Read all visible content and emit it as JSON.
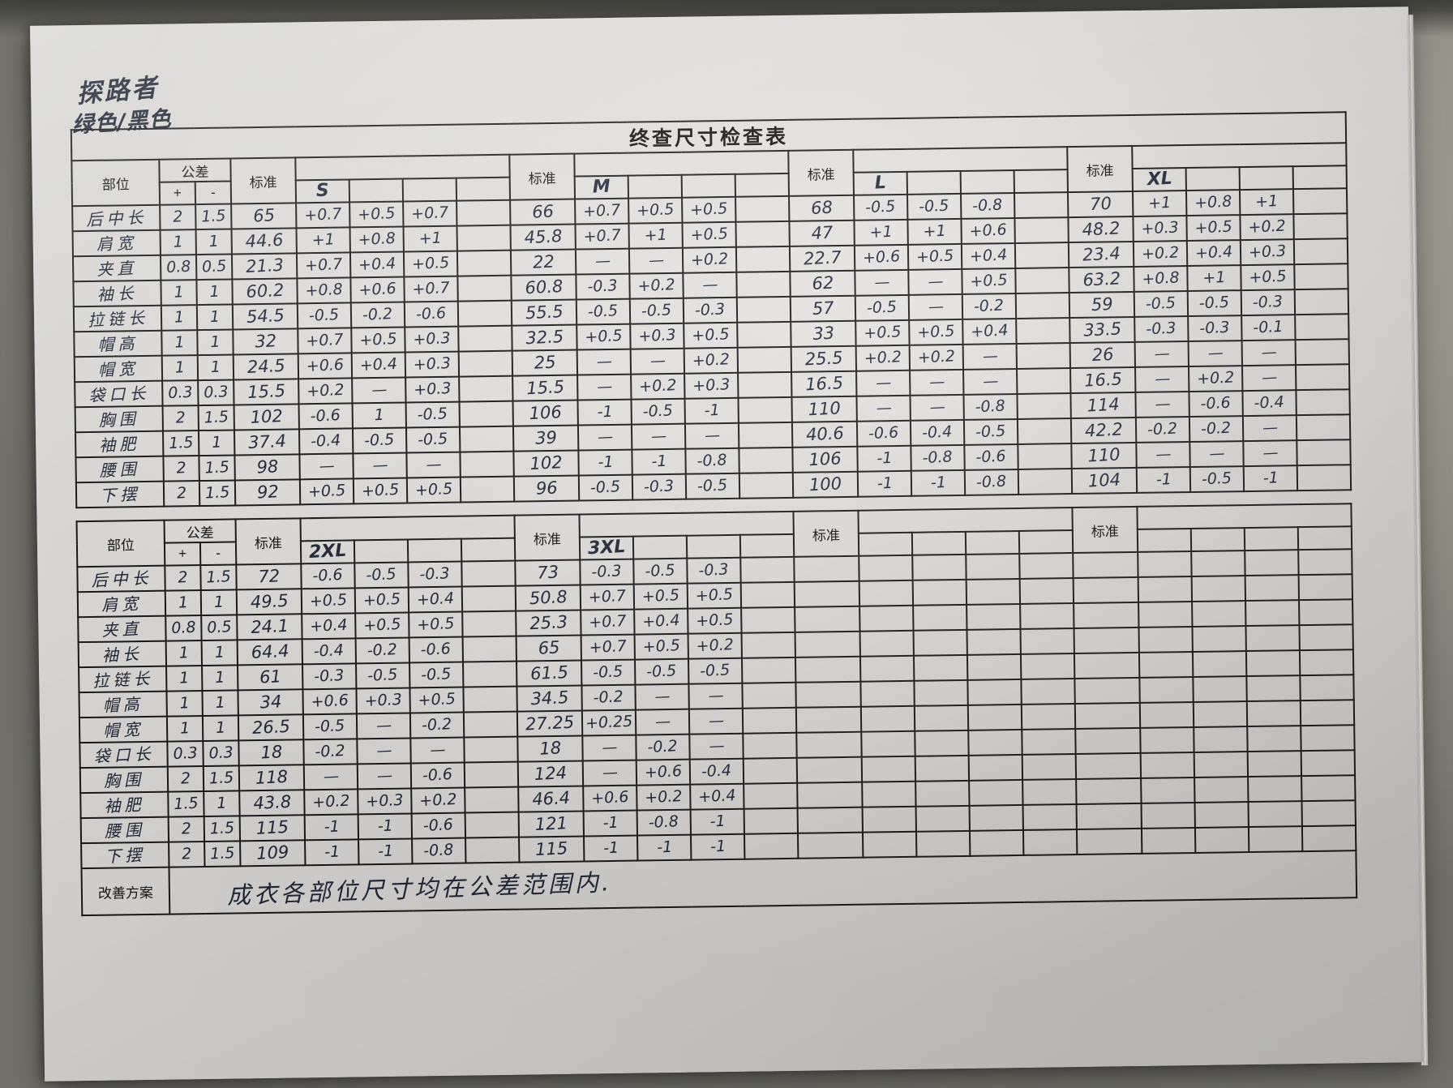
{
  "page": {
    "brand_note_line1": "探路者",
    "brand_note_line2": "绿色/黑色",
    "title": "终查尺寸检查表",
    "improvement_label": "改善方案",
    "improvement_text": "成衣各部位尺寸均在公差范围内."
  },
  "labels": {
    "part": "部位",
    "tolerance": "公差",
    "plus": "+",
    "minus": "-",
    "standard": "标准"
  },
  "parts": [
    {
      "name": "后中长",
      "plus": "2",
      "minus": "1.5"
    },
    {
      "name": "肩宽",
      "plus": "1",
      "minus": "1"
    },
    {
      "name": "夹直",
      "plus": "0.8",
      "minus": "0.5"
    },
    {
      "name": "袖长",
      "plus": "1",
      "minus": "1"
    },
    {
      "name": "拉链长",
      "plus": "1",
      "minus": "1"
    },
    {
      "name": "帽高",
      "plus": "1",
      "minus": "1"
    },
    {
      "name": "帽宽",
      "plus": "1",
      "minus": "1"
    },
    {
      "name": "袋口长",
      "plus": "0.3",
      "minus": "0.3"
    },
    {
      "name": "胸围",
      "plus": "2",
      "minus": "1.5"
    },
    {
      "name": "袖肥",
      "plus": "1.5",
      "minus": "1"
    },
    {
      "name": "腰围",
      "plus": "2",
      "minus": "1.5"
    },
    {
      "name": "下摆",
      "plus": "2",
      "minus": "1.5"
    }
  ],
  "tables": [
    {
      "blocks": [
        {
          "size": "S",
          "std": [
            "65",
            "44.6",
            "21.3",
            "60.2",
            "54.5",
            "32",
            "24.5",
            "15.5",
            "102",
            "37.4",
            "98",
            "92"
          ],
          "rows": [
            [
              "+0.7",
              "+0.5",
              "+0.7"
            ],
            [
              "+1",
              "+0.8",
              "+1"
            ],
            [
              "+0.7",
              "+0.4",
              "+0.5"
            ],
            [
              "+0.8",
              "+0.6",
              "+0.7"
            ],
            [
              "-0.5",
              "-0.2",
              "-0.6"
            ],
            [
              "+0.7",
              "+0.5",
              "+0.3"
            ],
            [
              "+0.6",
              "+0.4",
              "+0.3"
            ],
            [
              "+0.2",
              "—",
              "+0.3"
            ],
            [
              "-0.6",
              "1",
              "-0.5"
            ],
            [
              "-0.4",
              "-0.5",
              "-0.5"
            ],
            [
              "—",
              "—",
              "—"
            ],
            [
              "+0.5",
              "+0.5",
              "+0.5"
            ]
          ]
        },
        {
          "size": "M",
          "std": [
            "66",
            "45.8",
            "22",
            "60.8",
            "55.5",
            "32.5",
            "25",
            "15.5",
            "106",
            "39",
            "102",
            "96"
          ],
          "rows": [
            [
              "+0.7",
              "+0.5",
              "+0.5"
            ],
            [
              "+0.7",
              "+1",
              "+0.5"
            ],
            [
              "—",
              "—",
              "+0.2"
            ],
            [
              "-0.3",
              "+0.2",
              "—"
            ],
            [
              "-0.5",
              "-0.5",
              "-0.3"
            ],
            [
              "+0.5",
              "+0.3",
              "+0.5"
            ],
            [
              "—",
              "—",
              "+0.2"
            ],
            [
              "—",
              "+0.2",
              "+0.3"
            ],
            [
              "-1",
              "-0.5",
              "-1"
            ],
            [
              "—",
              "—",
              "—"
            ],
            [
              "-1",
              "-1",
              "-0.8"
            ],
            [
              "-0.5",
              "-0.3",
              "-0.5"
            ]
          ]
        },
        {
          "size": "L",
          "std": [
            "68",
            "47",
            "22.7",
            "62",
            "57",
            "33",
            "25.5",
            "16.5",
            "110",
            "40.6",
            "106",
            "100"
          ],
          "rows": [
            [
              "-0.5",
              "-0.5",
              "-0.8"
            ],
            [
              "+1",
              "+1",
              "+0.6"
            ],
            [
              "+0.6",
              "+0.5",
              "+0.4"
            ],
            [
              "—",
              "—",
              "+0.5"
            ],
            [
              "-0.5",
              "—",
              "-0.2"
            ],
            [
              "+0.5",
              "+0.5",
              "+0.4"
            ],
            [
              "+0.2",
              "+0.2",
              "—"
            ],
            [
              "—",
              "—",
              "—"
            ],
            [
              "—",
              "—",
              "-0.8"
            ],
            [
              "-0.6",
              "-0.4",
              "-0.5"
            ],
            [
              "-1",
              "-0.8",
              "-0.6"
            ],
            [
              "-1",
              "-1",
              "-0.8"
            ]
          ]
        },
        {
          "size": "XL",
          "std": [
            "70",
            "48.2",
            "23.4",
            "63.2",
            "59",
            "33.5",
            "26",
            "16.5",
            "114",
            "42.2",
            "110",
            "104"
          ],
          "rows": [
            [
              "+1",
              "+0.8",
              "+1"
            ],
            [
              "+0.3",
              "+0.5",
              "+0.2"
            ],
            [
              "+0.2",
              "+0.4",
              "+0.3"
            ],
            [
              "+0.8",
              "+1",
              "+0.5"
            ],
            [
              "-0.5",
              "-0.5",
              "-0.3"
            ],
            [
              "-0.3",
              "-0.3",
              "-0.1"
            ],
            [
              "—",
              "—",
              "—"
            ],
            [
              "—",
              "+0.2",
              "—"
            ],
            [
              "—",
              "-0.6",
              "-0.4"
            ],
            [
              "-0.2",
              "-0.2",
              "—"
            ],
            [
              "—",
              "—",
              "—"
            ],
            [
              "-1",
              "-0.5",
              "-1"
            ]
          ]
        }
      ]
    },
    {
      "blocks": [
        {
          "size": "2XL",
          "std": [
            "72",
            "49.5",
            "24.1",
            "64.4",
            "61",
            "34",
            "26.5",
            "18",
            "118",
            "43.8",
            "115",
            "109"
          ],
          "rows": [
            [
              "-0.6",
              "-0.5",
              "-0.3"
            ],
            [
              "+0.5",
              "+0.5",
              "+0.4"
            ],
            [
              "+0.4",
              "+0.5",
              "+0.5"
            ],
            [
              "-0.4",
              "-0.2",
              "-0.6"
            ],
            [
              "-0.3",
              "-0.5",
              "-0.5"
            ],
            [
              "+0.6",
              "+0.3",
              "+0.5"
            ],
            [
              "-0.5",
              "—",
              "-0.2"
            ],
            [
              "-0.2",
              "—",
              "—"
            ],
            [
              "—",
              "—",
              "-0.6"
            ],
            [
              "+0.2",
              "+0.3",
              "+0.2"
            ],
            [
              "-1",
              "-1",
              "-0.6"
            ],
            [
              "-1",
              "-1",
              "-0.8"
            ]
          ]
        },
        {
          "size": "3XL",
          "std": [
            "73",
            "50.8",
            "25.3",
            "65",
            "61.5",
            "34.5",
            "27.25",
            "18",
            "124",
            "46.4",
            "121",
            "115"
          ],
          "rows": [
            [
              "-0.3",
              "-0.5",
              "-0.3"
            ],
            [
              "+0.7",
              "+0.5",
              "+0.5"
            ],
            [
              "+0.7",
              "+0.4",
              "+0.5"
            ],
            [
              "+0.7",
              "+0.5",
              "+0.2"
            ],
            [
              "-0.5",
              "-0.5",
              "-0.5"
            ],
            [
              "-0.2",
              "—",
              "—"
            ],
            [
              "+0.25",
              "—",
              "—"
            ],
            [
              "—",
              "-0.2",
              "—"
            ],
            [
              "—",
              "+0.6",
              "-0.4"
            ],
            [
              "+0.6",
              "+0.2",
              "+0.4"
            ],
            [
              "-1",
              "-0.8",
              "-1"
            ],
            [
              "-1",
              "-1",
              "-1"
            ]
          ]
        },
        {
          "size": "",
          "std": [],
          "rows": []
        },
        {
          "size": "",
          "std": [],
          "rows": []
        }
      ]
    }
  ]
}
